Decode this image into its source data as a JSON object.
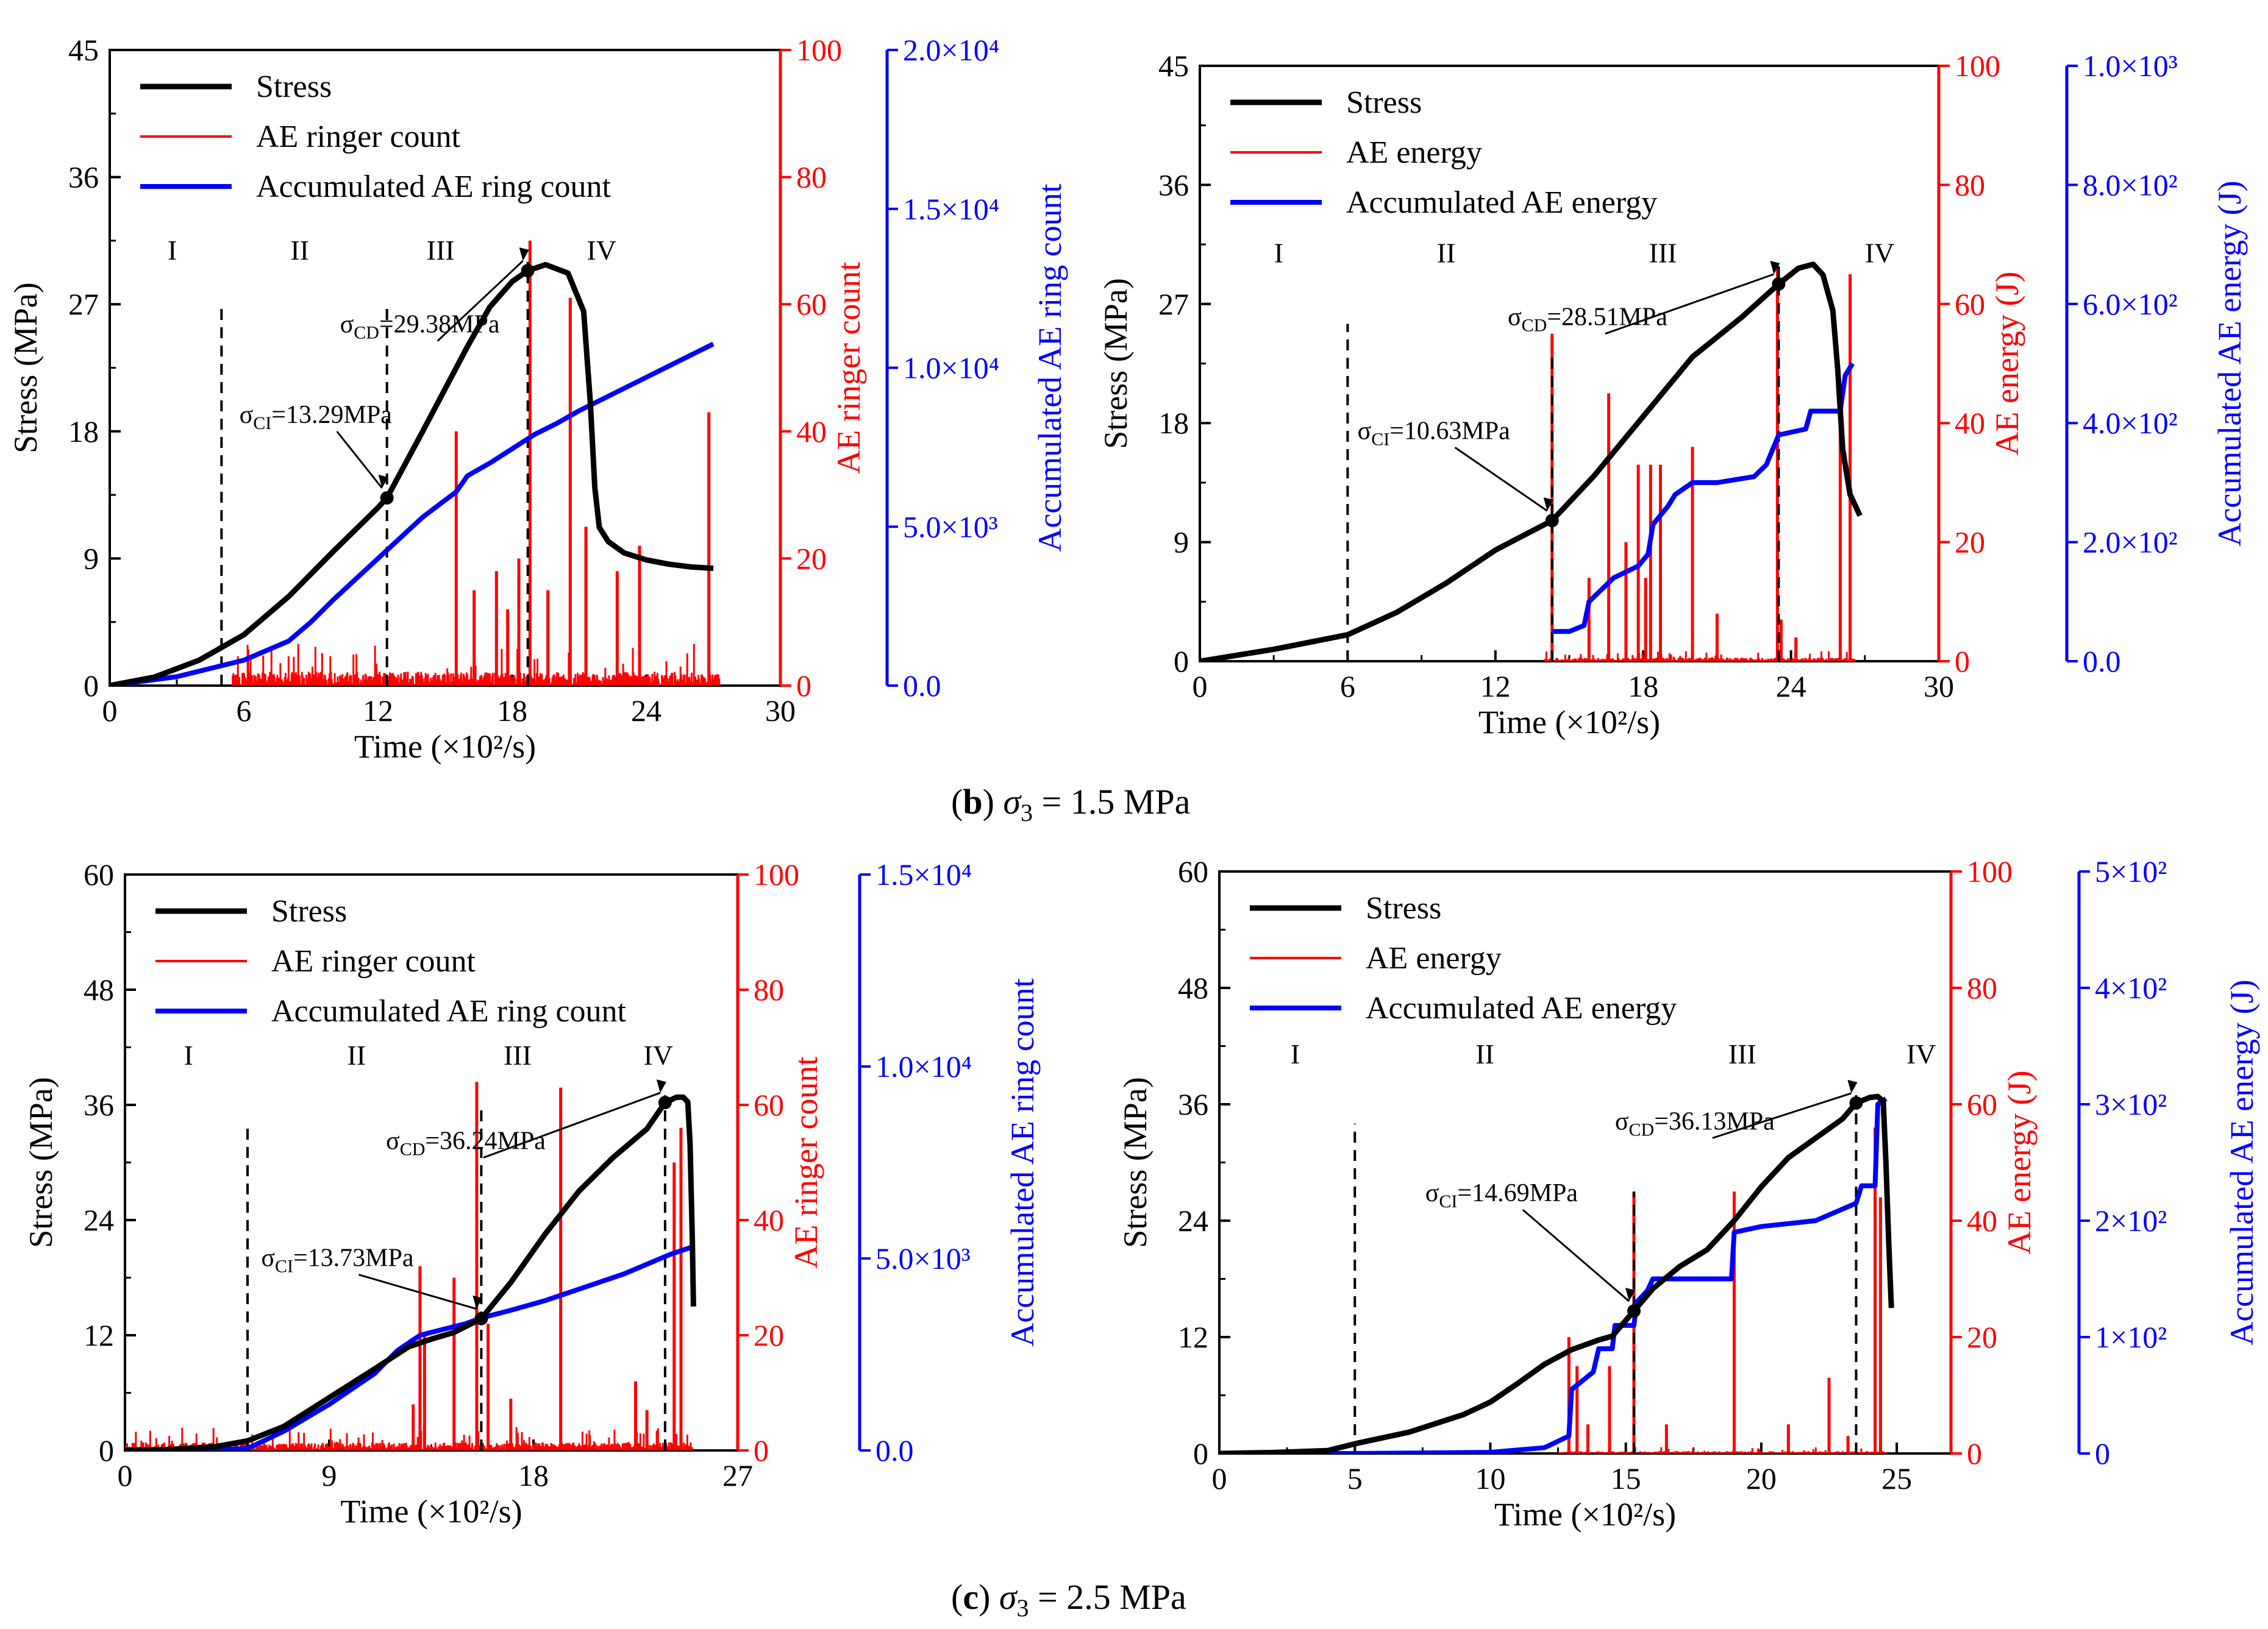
{
  "colors": {
    "stress": "#000000",
    "ae": "#ff0000",
    "cum": "#0000ff"
  },
  "captions": [
    {
      "letter": "b",
      "rest": "σ",
      "sub": "3",
      "tail": " = 1.5 MPa"
    },
    {
      "letter": "c",
      "rest": "σ",
      "sub": "3",
      "tail": " = 2.5 MPa"
    }
  ],
  "chart_data": [
    {
      "type": "line",
      "title": "",
      "xlabel": "Time (×10²/s)",
      "ylabel_left": "Stress (MPa)",
      "ylabel_mid": "AE ringer count",
      "ylabel_right": "Accumulated AE ring count",
      "x_ticks": [
        "0",
        "6",
        "12",
        "18",
        "24",
        "30"
      ],
      "xlim": [
        0,
        30
      ],
      "y_left_ticks": [
        "0",
        "9",
        "18",
        "27",
        "36",
        "45"
      ],
      "y_left_lim": [
        0,
        45
      ],
      "y_mid_ticks": [
        "0",
        "20",
        "40",
        "60",
        "80",
        "100"
      ],
      "y_mid_lim": [
        0,
        100
      ],
      "y_right_ticks": [
        "0.0",
        "5.0×10³",
        "1.0×10⁴",
        "1.5×10⁴",
        "2.0×10⁴"
      ],
      "y_right_lim": [
        0,
        20000
      ],
      "legend": [
        "Stress",
        "AE ringer count",
        "Accumulated AE ring count"
      ],
      "stage_labels": [
        {
          "label": "I",
          "x": 2.8
        },
        {
          "label": "II",
          "x": 8.5
        },
        {
          "label": "III",
          "x": 14.8
        },
        {
          "label": "IV",
          "x": 22.0
        }
      ],
      "stage_lines": [
        {
          "x": 5.0,
          "top": 27
        },
        {
          "x": 12.4,
          "top": 27
        },
        {
          "x": 18.7,
          "top": 30
        }
      ],
      "annotations": [
        {
          "sym": "σ",
          "sub": "CI",
          "value": "=13.29MPa",
          "point": [
            12.4,
            13.29
          ],
          "text_at": [
            5.8,
            18.6
          ]
        },
        {
          "sym": "σ",
          "sub": "CD",
          "value": "=29.38MPa",
          "point": [
            18.7,
            29.38
          ],
          "text_at": [
            10.3,
            25.0
          ]
        }
      ],
      "series": [
        {
          "name": "Stress",
          "axis": "left",
          "x": [
            0,
            2,
            4,
            6,
            8,
            10,
            12,
            12.4,
            14,
            16,
            17,
            18,
            18.7,
            19.5,
            20.5,
            21.2,
            21.5,
            21.7,
            21.9,
            22.3,
            23,
            24,
            25,
            26,
            27
          ],
          "y": [
            0,
            0.6,
            1.8,
            3.6,
            6.3,
            9.5,
            12.6,
            13.29,
            18.0,
            24.0,
            26.8,
            28.6,
            29.38,
            29.8,
            29.2,
            26.5,
            20.0,
            14.0,
            11.2,
            10.2,
            9.4,
            8.9,
            8.6,
            8.4,
            8.3
          ]
        },
        {
          "name": "Accumulated AE ring count",
          "axis": "right",
          "x": [
            0,
            3,
            6,
            8,
            9,
            10,
            12,
            14,
            15.5,
            16,
            17,
            18,
            19,
            20,
            21,
            22,
            23,
            24,
            25,
            26,
            27
          ],
          "y": [
            0,
            280,
            800,
            1400,
            2000,
            2700,
            4000,
            5300,
            6100,
            6600,
            7000,
            7450,
            7900,
            8250,
            8650,
            9000,
            9350,
            9700,
            10050,
            10400,
            10750
          ]
        },
        {
          "name": "AE ringer count",
          "axis": "mid",
          "major": [
            [
              15.5,
              40
            ],
            [
              17.3,
              18
            ],
            [
              18.3,
              20
            ],
            [
              18.8,
              70
            ],
            [
              20.6,
              61
            ],
            [
              21.3,
              25
            ],
            [
              22.7,
              18
            ],
            [
              23.7,
              22
            ],
            [
              26.8,
              43
            ],
            [
              17.8,
              12
            ],
            [
              19.6,
              15
            ],
            [
              16.3,
              15
            ]
          ],
          "noise_range": [
            5.5,
            27.3
          ],
          "noise_level": 2.2
        }
      ]
    },
    {
      "type": "line",
      "title": "",
      "xlabel": "Time (×10²/s)",
      "ylabel_left": "Stress (MPa)",
      "ylabel_mid": "AE energy (J)",
      "ylabel_right": "Accumulated AE energy (J)",
      "x_ticks": [
        "0",
        "6",
        "12",
        "18",
        "24",
        "30"
      ],
      "xlim": [
        0,
        30
      ],
      "y_left_ticks": [
        "0",
        "9",
        "18",
        "27",
        "36",
        "45"
      ],
      "y_left_lim": [
        0,
        45
      ],
      "y_mid_ticks": [
        "0",
        "20",
        "40",
        "60",
        "80",
        "100"
      ],
      "y_mid_lim": [
        0,
        100
      ],
      "y_right_ticks": [
        "0.0",
        "2.0×10²",
        "4.0×10²",
        "6.0×10²",
        "8.0×10²",
        "1.0×10³"
      ],
      "y_right_lim": [
        0,
        1000
      ],
      "legend": [
        "Stress",
        "AE energy",
        "Accumulated AE energy"
      ],
      "stage_labels": [
        {
          "label": "I",
          "x": 3.2
        },
        {
          "label": "II",
          "x": 10.0
        },
        {
          "label": "III",
          "x": 18.8
        },
        {
          "label": "IV",
          "x": 27.6
        }
      ],
      "stage_lines": [
        {
          "x": 6.0,
          "top": 25.5
        },
        {
          "x": 14.3,
          "top": 23.5
        },
        {
          "x": 23.5,
          "top": 30
        }
      ],
      "annotations": [
        {
          "sym": "σ",
          "sub": "CI",
          "value": "=10.63MPa",
          "point": [
            14.3,
            10.63
          ],
          "text_at": [
            6.4,
            16.8
          ]
        },
        {
          "sym": "σ",
          "sub": "CD",
          "value": "=28.51MPa",
          "point": [
            23.5,
            28.51
          ],
          "text_at": [
            12.5,
            25.4
          ]
        }
      ],
      "series": [
        {
          "name": "Stress",
          "axis": "left",
          "x": [
            0,
            3,
            6,
            8,
            10,
            12,
            14.3,
            16,
            18,
            20,
            22,
            23.5,
            24.3,
            24.9,
            25.3,
            25.7,
            25.9,
            26.1,
            26.4,
            26.8
          ],
          "y": [
            0,
            0.9,
            2.0,
            3.7,
            5.9,
            8.4,
            10.63,
            14.0,
            18.5,
            23.0,
            26.0,
            28.51,
            29.7,
            30.0,
            29.2,
            26.5,
            22.0,
            16.0,
            12.6,
            11.0
          ]
        },
        {
          "name": "Accumulated AE energy",
          "axis": "right",
          "x": [
            14.3,
            15.0,
            15.6,
            15.8,
            16.3,
            16.8,
            17.8,
            18.2,
            18.4,
            19.0,
            19.3,
            20.0,
            21.0,
            22.5,
            23.0,
            23.5,
            24.6,
            24.8,
            26.0,
            26.2,
            26.5
          ],
          "y": [
            50,
            50,
            60,
            100,
            120,
            140,
            160,
            180,
            230,
            260,
            280,
            300,
            300,
            310,
            330,
            380,
            390,
            420,
            420,
            480,
            500
          ]
        },
        {
          "name": "AE energy",
          "axis": "mid",
          "major": [
            [
              14.3,
              55
            ],
            [
              15.8,
              14
            ],
            [
              16.6,
              45
            ],
            [
              17.3,
              20
            ],
            [
              17.8,
              33
            ],
            [
              18.1,
              14
            ],
            [
              18.3,
              33
            ],
            [
              18.7,
              33
            ],
            [
              20.0,
              36
            ],
            [
              21.0,
              8
            ],
            [
              23.6,
              7
            ],
            [
              24.2,
              4
            ],
            [
              26.0,
              43
            ],
            [
              26.4,
              65
            ],
            [
              23.45,
              66
            ]
          ],
          "noise_range": [
            14.0,
            26.6
          ],
          "noise_level": 0.6
        }
      ]
    },
    {
      "type": "line",
      "title": "",
      "xlabel": "Time (×10²/s)",
      "ylabel_left": "Stress (MPa)",
      "ylabel_mid": "AE ringer count",
      "ylabel_right": "Accumulated AE ring count",
      "x_ticks": [
        "0",
        "9",
        "18",
        "27"
      ],
      "xlim": [
        0,
        27
      ],
      "y_left_ticks": [
        "0",
        "12",
        "24",
        "36",
        "48",
        "60"
      ],
      "y_left_lim": [
        0,
        60
      ],
      "y_mid_ticks": [
        "0",
        "20",
        "40",
        "60",
        "80",
        "100"
      ],
      "y_mid_lim": [
        0,
        100
      ],
      "y_right_ticks": [
        "0.0",
        "5.0×10³",
        "1.0×10⁴",
        "1.5×10⁴"
      ],
      "y_right_lim": [
        0,
        15000
      ],
      "legend": [
        "Stress",
        "AE ringer count",
        "Accumulated AE ring count"
      ],
      "stage_labels": [
        {
          "label": "I",
          "x": 2.8
        },
        {
          "label": "II",
          "x": 10.2
        },
        {
          "label": "III",
          "x": 17.3
        },
        {
          "label": "IV",
          "x": 23.5
        }
      ],
      "stage_lines": [
        {
          "x": 5.4,
          "top": 34
        },
        {
          "x": 15.7,
          "top": 36
        },
        {
          "x": 23.8,
          "top": 37
        }
      ],
      "annotations": [
        {
          "sym": "σ",
          "sub": "CI",
          "value": "=13.73MPa",
          "point": [
            15.7,
            13.73
          ],
          "text_at": [
            6.0,
            19.2
          ]
        },
        {
          "sym": "σ",
          "sub": "CD",
          "value": "=36.24MPa",
          "point": [
            23.8,
            36.24
          ],
          "text_at": [
            11.5,
            31.4
          ]
        }
      ],
      "series": [
        {
          "name": "Stress",
          "axis": "left",
          "x": [
            0,
            2,
            4,
            5.4,
            7,
            9,
            11,
            12.5,
            13.5,
            14.5,
            15.7,
            17,
            18.5,
            20,
            21.5,
            23,
            23.8,
            24.3,
            24.6,
            24.8,
            24.9,
            25.0,
            25.05
          ],
          "y": [
            0,
            0.1,
            0.4,
            1.0,
            2.5,
            5.5,
            8.5,
            10.8,
            11.6,
            12.3,
            13.73,
            17.5,
            22.5,
            27.0,
            30.5,
            33.5,
            36.24,
            36.8,
            36.8,
            36.3,
            32.0,
            22.0,
            15.0
          ]
        },
        {
          "name": "Accumulated AE ring count",
          "axis": "right",
          "x": [
            0,
            3,
            5.4,
            7,
            9,
            11,
            12,
            13,
            14,
            15,
            15.7,
            17,
            18.5,
            20,
            22,
            24,
            25
          ],
          "y": [
            0,
            0,
            50,
            500,
            1200,
            2000,
            2600,
            3000,
            3150,
            3300,
            3450,
            3650,
            3900,
            4200,
            4600,
            5100,
            5300
          ]
        },
        {
          "name": "AE ringer count",
          "axis": "mid",
          "major": [
            [
              13.0,
              32
            ],
            [
              13.2,
              20
            ],
            [
              14.5,
              30
            ],
            [
              15.5,
              64
            ],
            [
              16.0,
              22
            ],
            [
              19.2,
              63
            ],
            [
              22.5,
              12
            ],
            [
              23.0,
              7
            ],
            [
              24.2,
              50
            ],
            [
              24.5,
              56
            ],
            [
              12.7,
              8
            ],
            [
              17.0,
              9
            ]
          ],
          "noise_range": [
            0,
            25.0
          ],
          "noise_level": 1.4
        }
      ]
    },
    {
      "type": "line",
      "title": "",
      "xlabel": "Time (×10²/s)",
      "ylabel_left": "Stress (MPa)",
      "ylabel_mid": "AE energy (J)",
      "ylabel_right": "Accumulated AE energy (J)",
      "x_ticks": [
        "0",
        "5",
        "10",
        "15",
        "20",
        "25"
      ],
      "xlim": [
        0,
        27
      ],
      "y_left_ticks": [
        "0",
        "12",
        "24",
        "36",
        "48",
        "60"
      ],
      "y_left_lim": [
        0,
        60
      ],
      "y_mid_ticks": [
        "0",
        "20",
        "40",
        "60",
        "80",
        "100"
      ],
      "y_mid_lim": [
        0,
        100
      ],
      "y_right_ticks": [
        "0",
        "1×10²",
        "2×10²",
        "3×10²",
        "4×10²",
        "5×10²"
      ],
      "y_right_lim": [
        0,
        500
      ],
      "legend": [
        "Stress",
        "AE energy",
        "Accumulated AE energy"
      ],
      "stage_labels": [
        {
          "label": "I",
          "x": 2.8
        },
        {
          "label": "II",
          "x": 9.8
        },
        {
          "label": "III",
          "x": 19.3
        },
        {
          "label": "IV",
          "x": 25.9
        }
      ],
      "stage_lines": [
        {
          "x": 5.0,
          "top": 34
        },
        {
          "x": 15.3,
          "top": 27
        },
        {
          "x": 23.5,
          "top": 37
        }
      ],
      "annotations": [
        {
          "sym": "σ",
          "sub": "CI",
          "value": "=14.69MPa",
          "point": [
            15.3,
            14.69
          ],
          "text_at": [
            7.6,
            26.0
          ]
        },
        {
          "sym": "σ",
          "sub": "CD",
          "value": "=36.13MPa",
          "point": [
            23.5,
            36.13
          ],
          "text_at": [
            14.6,
            33.4
          ]
        }
      ],
      "series": [
        {
          "name": "Stress",
          "axis": "left",
          "x": [
            0,
            2,
            4,
            5,
            7,
            9,
            10,
            11,
            12,
            13,
            14,
            14.5,
            15.3,
            16,
            17,
            18,
            19,
            20,
            21,
            22,
            23,
            23.5,
            24,
            24.3,
            24.5,
            24.6,
            24.7,
            24.8
          ],
          "y": [
            0,
            0.1,
            0.3,
            1.0,
            2.2,
            4.0,
            5.3,
            7.2,
            9.2,
            10.7,
            11.7,
            12.1,
            14.69,
            17.0,
            19.3,
            21.0,
            24.0,
            27.5,
            30.5,
            32.5,
            34.5,
            36.13,
            36.7,
            36.8,
            36.3,
            30.0,
            22.0,
            15.0
          ]
        },
        {
          "name": "Accumulated AE energy",
          "axis": "right",
          "x": [
            0,
            5,
            10,
            12,
            12.9,
            13.0,
            13.8,
            14.0,
            14.5,
            14.6,
            15.3,
            15.4,
            15.8,
            16.0,
            18.9,
            19.0,
            20.0,
            22.0,
            23.0,
            23.5,
            23.7,
            24.2,
            24.3,
            24.6
          ],
          "y": [
            0,
            0,
            1,
            5,
            15,
            55,
            70,
            90,
            90,
            110,
            110,
            130,
            140,
            150,
            150,
            190,
            195,
            200,
            210,
            215,
            230,
            230,
            300,
            305
          ]
        },
        {
          "name": "AE energy",
          "axis": "mid",
          "major": [
            [
              12.9,
              20
            ],
            [
              13.2,
              15
            ],
            [
              14.4,
              15
            ],
            [
              15.3,
              45
            ],
            [
              19.0,
              45
            ],
            [
              22.5,
              13
            ],
            [
              24.2,
              56
            ],
            [
              24.4,
              44
            ],
            [
              13.6,
              5
            ],
            [
              16.5,
              5
            ],
            [
              21.0,
              5
            ],
            [
              23.2,
              3
            ]
          ],
          "noise_range": [
            12.5,
            24.6
          ],
          "noise_level": 0.4
        }
      ]
    }
  ]
}
